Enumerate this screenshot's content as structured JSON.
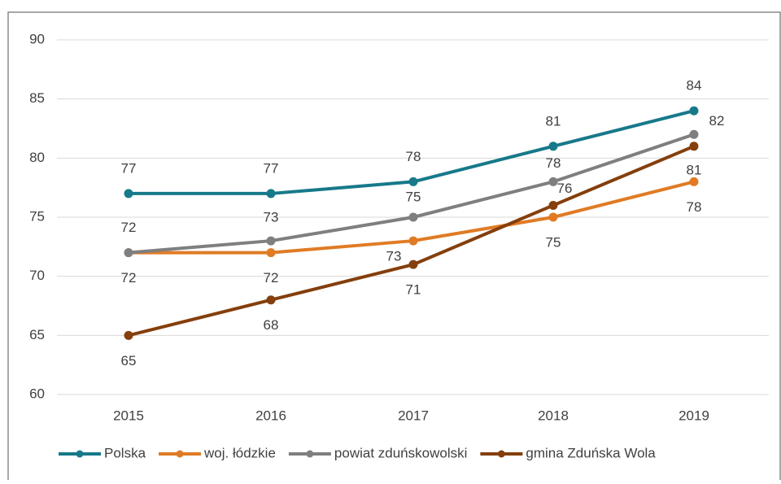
{
  "chart_data": {
    "type": "line",
    "categories": [
      "2015",
      "2016",
      "2017",
      "2018",
      "2019"
    ],
    "series": [
      {
        "name": "Polska",
        "color": "#17798a",
        "values": [
          77,
          77,
          78,
          81,
          84
        ]
      },
      {
        "name": "woj. łódzkie",
        "color": "#e07b24",
        "values": [
          72,
          72,
          73,
          75,
          78
        ]
      },
      {
        "name": "powiat zduńskowolski",
        "color": "#7f7f7f",
        "values": [
          72,
          73,
          75,
          78,
          82
        ]
      },
      {
        "name": "gmina Zduńska Wola",
        "color": "#843f0c",
        "values": [
          65,
          68,
          71,
          76,
          81
        ]
      }
    ],
    "ylim": [
      60,
      90
    ],
    "yticks": [
      60,
      65,
      70,
      75,
      80,
      85,
      90
    ],
    "grid": true,
    "legend": "bottom"
  }
}
